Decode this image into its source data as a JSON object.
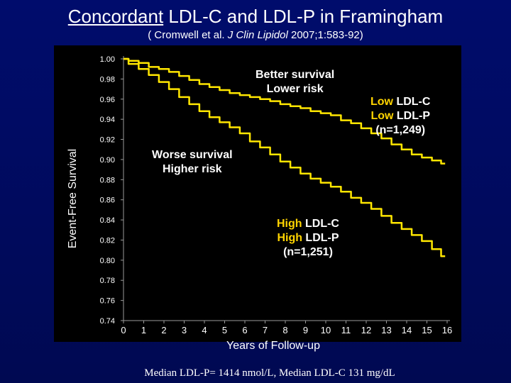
{
  "title": {
    "part1": "Concordant",
    "part2": " LDL-C and LDL-P in Framingham"
  },
  "subtitle": {
    "open": "( Cromwell et al. ",
    "journal": "J Clin Lipidol",
    "rest": " 2007;1:583-92)"
  },
  "note": "Median LDL-P= 1414 nmol/L, Median LDL-C 131 mg/dL",
  "annotations": {
    "better_line1": "Better survival",
    "better_line2": "Lower risk",
    "worse_line1": "Worse survival",
    "worse_line2": "Higher risk",
    "low_c_prefix": "Low",
    "low_c_suffix": " LDL-C",
    "low_p_prefix": "Low",
    "low_p_suffix": " LDL-P",
    "low_n": "(n=1,249)",
    "high_c_prefix": "High",
    "high_c_suffix": " LDL-C",
    "high_p_prefix": "High",
    "high_p_suffix": " LDL-P",
    "high_n": "(n=1,251)"
  },
  "colors": {
    "background": "#000c6c",
    "plot_bg": "#000000",
    "curve": "#ffe600",
    "highlight": "#ffd400",
    "tick_text": "#ffffff"
  },
  "chart_data": {
    "type": "line",
    "title": "Concordant LDL-C and LDL-P in Framingham",
    "xlabel": "Years of Follow-up",
    "ylabel": "Event-Free Survival",
    "xlim": [
      0,
      16
    ],
    "ylim": [
      0.74,
      1.0
    ],
    "x_ticks": [
      0,
      1,
      2,
      3,
      4,
      5,
      6,
      7,
      8,
      9,
      10,
      11,
      12,
      13,
      14,
      15,
      16
    ],
    "y_ticks": [
      0.74,
      0.76,
      0.78,
      0.8,
      0.82,
      0.84,
      0.86,
      0.88,
      0.9,
      0.92,
      0.94,
      0.96,
      0.98,
      1.0
    ],
    "y_tick_labels": [
      "0.74",
      "0.76",
      "0.78",
      "0.80",
      "0.82",
      "0.84",
      "0.86",
      "0.88",
      "0.90",
      "0.92",
      "0.94",
      "0.96",
      "0.98",
      "1.00"
    ],
    "series": [
      {
        "name": "Low LDL-C / Low LDL-P (n=1,249)",
        "x": [
          0,
          0.5,
          1,
          1.5,
          2,
          2.5,
          3,
          3.5,
          4,
          4.5,
          5,
          5.5,
          6,
          6.5,
          7,
          7.5,
          8,
          8.5,
          9,
          9.5,
          10,
          10.5,
          11,
          11.5,
          12,
          12.5,
          13,
          13.5,
          14,
          14.5,
          15,
          15.5,
          15.9
        ],
        "y": [
          1.0,
          0.998,
          0.996,
          0.992,
          0.99,
          0.987,
          0.983,
          0.979,
          0.975,
          0.972,
          0.969,
          0.966,
          0.964,
          0.962,
          0.96,
          0.958,
          0.955,
          0.953,
          0.951,
          0.948,
          0.946,
          0.944,
          0.939,
          0.936,
          0.931,
          0.926,
          0.921,
          0.915,
          0.91,
          0.905,
          0.902,
          0.899,
          0.896
        ]
      },
      {
        "name": "High LDL-C / High LDL-P (n=1,251)",
        "x": [
          0,
          0.5,
          1,
          1.5,
          2,
          2.5,
          3,
          3.5,
          4,
          4.5,
          5,
          5.5,
          6,
          6.5,
          7,
          7.5,
          8,
          8.5,
          9,
          9.5,
          10,
          10.5,
          11,
          11.5,
          12,
          12.5,
          13,
          13.5,
          14,
          14.5,
          15,
          15.5,
          15.9
        ],
        "y": [
          1.0,
          0.995,
          0.99,
          0.984,
          0.977,
          0.97,
          0.962,
          0.955,
          0.948,
          0.942,
          0.937,
          0.932,
          0.926,
          0.918,
          0.912,
          0.905,
          0.898,
          0.892,
          0.886,
          0.881,
          0.877,
          0.873,
          0.868,
          0.862,
          0.857,
          0.851,
          0.844,
          0.837,
          0.831,
          0.825,
          0.819,
          0.811,
          0.804
        ]
      }
    ]
  }
}
